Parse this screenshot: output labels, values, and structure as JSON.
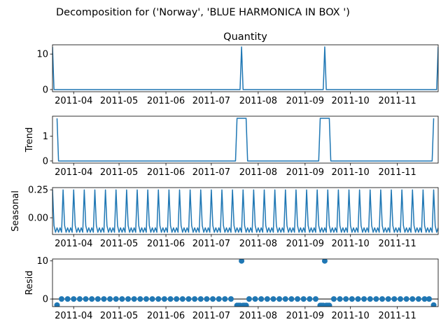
{
  "figure": {
    "suptitle": "Decomposition for ('Norway', 'BLUE HARMONICA IN BOX ')"
  },
  "colors": {
    "line": "#1f77b4",
    "axis": "#000000",
    "zero_line": "#000000"
  },
  "chart_data": [
    {
      "type": "line",
      "title": "Quantity",
      "ylabel": "",
      "ylim": [
        -0.6,
        12.6
      ],
      "yticks": [
        0,
        10
      ],
      "x": {
        "start": "2011-03-18",
        "end": "2011-11-28",
        "ticks": [
          "2011-04",
          "2011-05",
          "2011-06",
          "2011-07",
          "2011-08",
          "2011-09",
          "2011-10",
          "2011-11"
        ]
      },
      "series": [
        {
          "points": [
            [
              "2011-03-18",
              12
            ],
            [
              "2011-03-19",
              0
            ],
            [
              "2011-07-20",
              0
            ],
            [
              "2011-07-21",
              12
            ],
            [
              "2011-07-22",
              0
            ],
            [
              "2011-09-13",
              0
            ],
            [
              "2011-09-14",
              12
            ],
            [
              "2011-09-15",
              0
            ],
            [
              "2011-11-27",
              0
            ],
            [
              "2011-11-28",
              12
            ]
          ]
        }
      ]
    },
    {
      "type": "line",
      "title": "",
      "ylabel": "Trend",
      "ylim": [
        -0.086,
        1.8
      ],
      "yticks": [
        0,
        1
      ],
      "x": {
        "start": "2011-03-18",
        "end": "2011-11-28",
        "ticks": [
          "2011-04",
          "2011-05",
          "2011-06",
          "2011-07",
          "2011-08",
          "2011-09",
          "2011-10",
          "2011-11"
        ]
      },
      "series": [
        {
          "points": [
            [
              "2011-03-21",
              1.714
            ],
            [
              "2011-03-22",
              0
            ],
            [
              "2011-07-17",
              0
            ],
            [
              "2011-07-18",
              1.714
            ],
            [
              "2011-07-24",
              1.714
            ],
            [
              "2011-07-25",
              0
            ],
            [
              "2011-09-10",
              0
            ],
            [
              "2011-09-11",
              1.714
            ],
            [
              "2011-09-17",
              1.714
            ],
            [
              "2011-09-18",
              0
            ],
            [
              "2011-11-24",
              0
            ],
            [
              "2011-11-25",
              1.714
            ]
          ]
        }
      ]
    },
    {
      "type": "line",
      "title": "",
      "ylabel": "Seasonal",
      "ylim": [
        -0.15,
        0.27
      ],
      "yticks": [
        0.0,
        0.25
      ],
      "ytick_labels": [
        "0.00",
        "0.25"
      ],
      "x": {
        "start": "2011-03-18",
        "end": "2011-11-28",
        "ticks": [
          "2011-04",
          "2011-05",
          "2011-06",
          "2011-07",
          "2011-08",
          "2011-09",
          "2011-10",
          "2011-11"
        ]
      },
      "series": [
        {
          "pattern": "weekly",
          "period_days": 7,
          "weekly_values": [
            0.25,
            -0.07,
            -0.13,
            -0.09,
            -0.13,
            -0.09,
            -0.13
          ]
        }
      ]
    },
    {
      "type": "scatter",
      "title": "",
      "ylabel": "Resid",
      "ylim": [
        -2.0,
        10.5
      ],
      "yticks": [
        0,
        10
      ],
      "zero_line": true,
      "x": {
        "start": "2011-03-18",
        "end": "2011-11-28",
        "ticks": [
          "2011-04",
          "2011-05",
          "2011-06",
          "2011-07",
          "2011-08",
          "2011-09",
          "2011-10",
          "2011-11"
        ]
      },
      "series": [
        {
          "points": [
            [
              "2011-03-21",
              -1.6
            ],
            [
              "2011-03-24",
              0
            ],
            [
              "2011-03-28",
              0
            ],
            [
              "2011-04-01",
              0
            ],
            [
              "2011-04-05",
              0
            ],
            [
              "2011-04-09",
              0
            ],
            [
              "2011-04-13",
              0
            ],
            [
              "2011-04-17",
              0
            ],
            [
              "2011-04-21",
              0
            ],
            [
              "2011-04-25",
              0
            ],
            [
              "2011-04-29",
              0
            ],
            [
              "2011-05-03",
              0
            ],
            [
              "2011-05-07",
              0
            ],
            [
              "2011-05-11",
              0
            ],
            [
              "2011-05-15",
              0
            ],
            [
              "2011-05-19",
              0
            ],
            [
              "2011-05-23",
              0
            ],
            [
              "2011-05-27",
              0
            ],
            [
              "2011-05-31",
              0
            ],
            [
              "2011-06-04",
              0
            ],
            [
              "2011-06-08",
              0
            ],
            [
              "2011-06-12",
              0
            ],
            [
              "2011-06-16",
              0
            ],
            [
              "2011-06-20",
              0
            ],
            [
              "2011-06-24",
              0
            ],
            [
              "2011-06-28",
              0
            ],
            [
              "2011-07-02",
              0
            ],
            [
              "2011-07-06",
              0
            ],
            [
              "2011-07-10",
              0
            ],
            [
              "2011-07-14",
              0
            ],
            [
              "2011-07-18",
              -1.7
            ],
            [
              "2011-07-19",
              -1.7
            ],
            [
              "2011-07-20",
              -1.7
            ],
            [
              "2011-07-21",
              10.0
            ],
            [
              "2011-07-22",
              -1.7
            ],
            [
              "2011-07-23",
              -1.7
            ],
            [
              "2011-07-24",
              -1.7
            ],
            [
              "2011-07-26",
              0
            ],
            [
              "2011-07-30",
              0
            ],
            [
              "2011-08-03",
              0
            ],
            [
              "2011-08-07",
              0
            ],
            [
              "2011-08-11",
              0
            ],
            [
              "2011-08-15",
              0
            ],
            [
              "2011-08-19",
              0
            ],
            [
              "2011-08-23",
              0
            ],
            [
              "2011-08-27",
              0
            ],
            [
              "2011-08-31",
              0
            ],
            [
              "2011-09-04",
              0
            ],
            [
              "2011-09-08",
              0
            ],
            [
              "2011-09-11",
              -1.7
            ],
            [
              "2011-09-12",
              -1.7
            ],
            [
              "2011-09-13",
              -1.7
            ],
            [
              "2011-09-14",
              10.0
            ],
            [
              "2011-09-15",
              -1.7
            ],
            [
              "2011-09-16",
              -1.7
            ],
            [
              "2011-09-17",
              -1.7
            ],
            [
              "2011-09-20",
              0
            ],
            [
              "2011-09-24",
              0
            ],
            [
              "2011-09-28",
              0
            ],
            [
              "2011-10-02",
              0
            ],
            [
              "2011-10-06",
              0
            ],
            [
              "2011-10-10",
              0
            ],
            [
              "2011-10-14",
              0
            ],
            [
              "2011-10-18",
              0
            ],
            [
              "2011-10-22",
              0
            ],
            [
              "2011-10-26",
              0
            ],
            [
              "2011-10-30",
              0
            ],
            [
              "2011-11-03",
              0
            ],
            [
              "2011-11-07",
              0
            ],
            [
              "2011-11-11",
              0
            ],
            [
              "2011-11-15",
              0
            ],
            [
              "2011-11-19",
              0
            ],
            [
              "2011-11-22",
              0
            ],
            [
              "2011-11-25",
              -1.6
            ]
          ]
        }
      ]
    }
  ]
}
